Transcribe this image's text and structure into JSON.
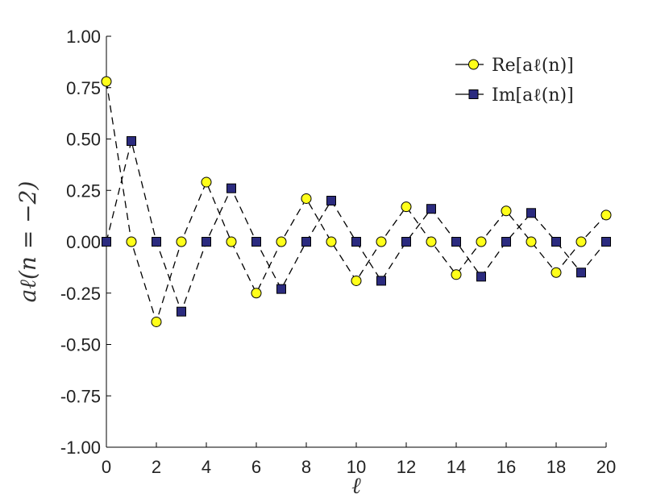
{
  "chart_data": {
    "type": "line",
    "title": "",
    "xlabel": "ℓ",
    "ylabel": "aℓ(n = −2)",
    "xlim": [
      0,
      20
    ],
    "ylim": [
      -1.0,
      1.0
    ],
    "x_ticks": [
      "0",
      "2",
      "4",
      "6",
      "8",
      "10",
      "12",
      "14",
      "16",
      "18",
      "20"
    ],
    "y_ticks": [
      "1.00",
      "0.75",
      "0.50",
      "0.25",
      "0.00",
      "-0.25",
      "-0.50",
      "-0.75",
      "-1.00"
    ],
    "grid": false,
    "legend_position": "top-right",
    "x": [
      0,
      1,
      2,
      3,
      4,
      5,
      6,
      7,
      8,
      9,
      10,
      11,
      12,
      13,
      14,
      15,
      16,
      17,
      18,
      19,
      20
    ],
    "series": [
      {
        "name": "Re[aℓ(n)]",
        "marker": "circle",
        "color": "#ffff1a",
        "values": [
          0.78,
          0,
          -0.39,
          0,
          0.29,
          0,
          -0.25,
          0,
          0.21,
          0,
          -0.19,
          0,
          0.17,
          0,
          -0.16,
          0,
          0.15,
          0,
          -0.15,
          0,
          0.13
        ]
      },
      {
        "name": "Im[aℓ(n)]",
        "marker": "square",
        "color": "#2b2b7f",
        "values": [
          0,
          0.49,
          0,
          -0.34,
          0,
          0.26,
          0,
          -0.23,
          0,
          0.2,
          0,
          -0.19,
          0,
          0.16,
          0,
          -0.17,
          0,
          0.14,
          0,
          -0.15,
          0
        ]
      }
    ]
  }
}
